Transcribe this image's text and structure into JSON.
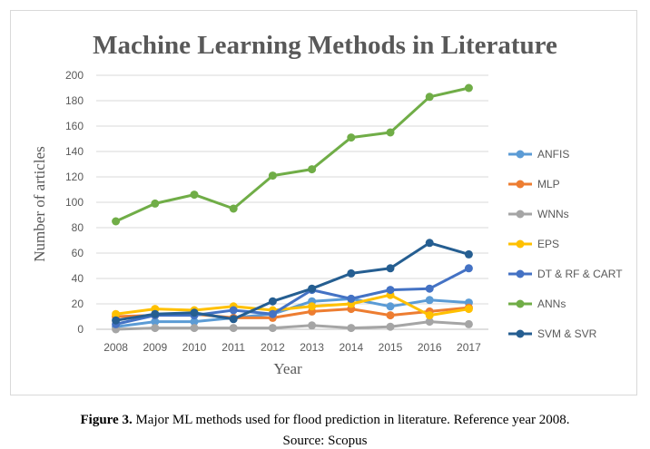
{
  "caption": {
    "label": "Figure 3.",
    "text": " Major ML methods used for flood prediction in literature. Reference year 2008.",
    "source": "Source: Scopus"
  },
  "chart_data": {
    "type": "line",
    "title": "Machine Learning Methods in Literature",
    "xlabel": "Year",
    "ylabel": "Number of articles",
    "ylim": [
      0,
      200
    ],
    "yticks": [
      0,
      20,
      40,
      60,
      80,
      100,
      120,
      140,
      160,
      180,
      200
    ],
    "categories": [
      "2008",
      "2009",
      "2010",
      "2011",
      "2012",
      "2013",
      "2014",
      "2015",
      "2016",
      "2017"
    ],
    "grid": "horizontal",
    "legend_position": "right",
    "series": [
      {
        "name": "ANFIS",
        "color": "#5b9bd5",
        "values": [
          2,
          6,
          6,
          9,
          12,
          22,
          24,
          18,
          23,
          21
        ]
      },
      {
        "name": "MLP",
        "color": "#ed7d31",
        "values": [
          10,
          11,
          12,
          9,
          9,
          14,
          16,
          11,
          14,
          17
        ]
      },
      {
        "name": "WNNs",
        "color": "#a5a5a5",
        "values": [
          0,
          1,
          1,
          1,
          1,
          3,
          1,
          2,
          6,
          4
        ]
      },
      {
        "name": "EPS",
        "color": "#ffc000",
        "values": [
          12,
          16,
          15,
          18,
          15,
          18,
          20,
          27,
          11,
          16
        ]
      },
      {
        "name": "DT & RF & CART",
        "color": "#4472c4",
        "values": [
          4,
          11,
          11,
          15,
          12,
          31,
          24,
          31,
          32,
          48
        ]
      },
      {
        "name": "ANNs",
        "color": "#70ad47",
        "values": [
          85,
          99,
          106,
          95,
          121,
          126,
          151,
          155,
          183,
          190
        ]
      },
      {
        "name": "SVM & SVR",
        "color": "#255e91",
        "values": [
          7,
          12,
          13,
          8,
          22,
          32,
          44,
          48,
          68,
          59
        ]
      }
    ]
  }
}
